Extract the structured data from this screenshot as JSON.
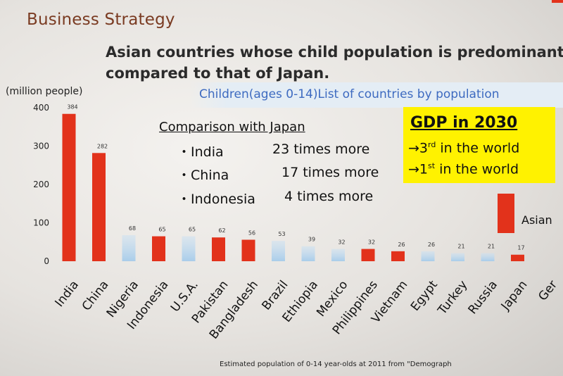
{
  "header": {
    "section_title": "Business Strategy",
    "headline_line1": "Asian countries whose child population is predominant",
    "headline_line2": "compared to that of Japan."
  },
  "subtitle": "Children(ages 0-14)List of countries by population",
  "comparison": {
    "title": "Comparison with Japan",
    "rows": [
      {
        "country": "・India",
        "times": "23 times more"
      },
      {
        "country": "・China",
        "times": "17 times more"
      },
      {
        "country": "・Indonesia",
        "times": "4 times more"
      }
    ]
  },
  "gdp": {
    "title": "GDP in 2030",
    "line1_prefix": "→3",
    "line1_sup": "rd",
    "line1_suffix": " in the world",
    "line2_prefix": "→1",
    "line2_sup": "st",
    "line2_suffix": " in the world"
  },
  "legend": {
    "label": "Asian"
  },
  "source": "Estimated population of 0-14 year-olds at 2011 from \"Demograph",
  "colors": {
    "asian": "#e2321b",
    "non_asian": "#a9cdea"
  },
  "chart_data": {
    "type": "bar",
    "ylabel": "(million people)",
    "ylim": [
      0,
      400
    ],
    "yticks": [
      0,
      100,
      200,
      300,
      400
    ],
    "categories": [
      "India",
      "China",
      "Nigeria",
      "Indonesia",
      "U.S.A.",
      "Pakistan",
      "Bangladesh",
      "Brazil",
      "Ethiopia",
      "Mexico",
      "Philippines",
      "Vietnam",
      "Egypt",
      "Turkey",
      "Russia",
      "Japan",
      "Ger"
    ],
    "values": [
      384,
      282,
      68,
      65,
      65,
      62,
      56,
      53,
      39,
      32,
      32,
      26,
      26,
      21,
      21,
      17,
      null
    ],
    "value_labels": [
      "384",
      "282",
      "68",
      "65",
      "65",
      "62",
      "56",
      "53",
      "39",
      "32",
      "32",
      "26",
      "26",
      "21",
      "21",
      "17",
      ""
    ],
    "asian": [
      true,
      true,
      false,
      true,
      false,
      true,
      true,
      false,
      false,
      false,
      true,
      true,
      false,
      false,
      false,
      true,
      false
    ]
  }
}
